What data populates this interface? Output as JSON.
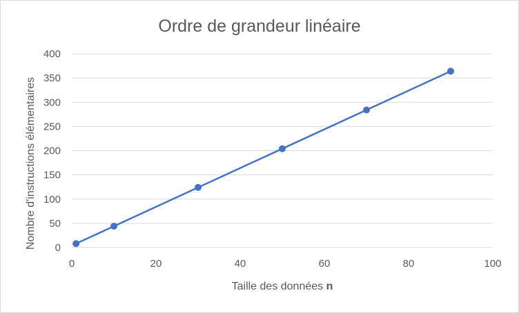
{
  "chart_data": {
    "type": "scatter",
    "title": "Ordre de grandeur linéaire",
    "xlabel": "Taille des données ",
    "xlabel_bold": "n",
    "ylabel": "Nombre d'instructions élémentaires",
    "xlim": [
      0,
      100
    ],
    "ylim": [
      0,
      400
    ],
    "xticks": [
      "0",
      "20",
      "40",
      "60",
      "80",
      "100"
    ],
    "yticks": [
      "0",
      "50",
      "100",
      "150",
      "200",
      "250",
      "300",
      "350",
      "400"
    ],
    "grid": true,
    "legend": "none",
    "series": [
      {
        "x": [
          1,
          10,
          30,
          50,
          70,
          90
        ],
        "y": [
          8,
          44,
          124,
          204,
          284,
          364
        ],
        "color": "#4472c4",
        "markers": true,
        "line": true
      }
    ]
  }
}
